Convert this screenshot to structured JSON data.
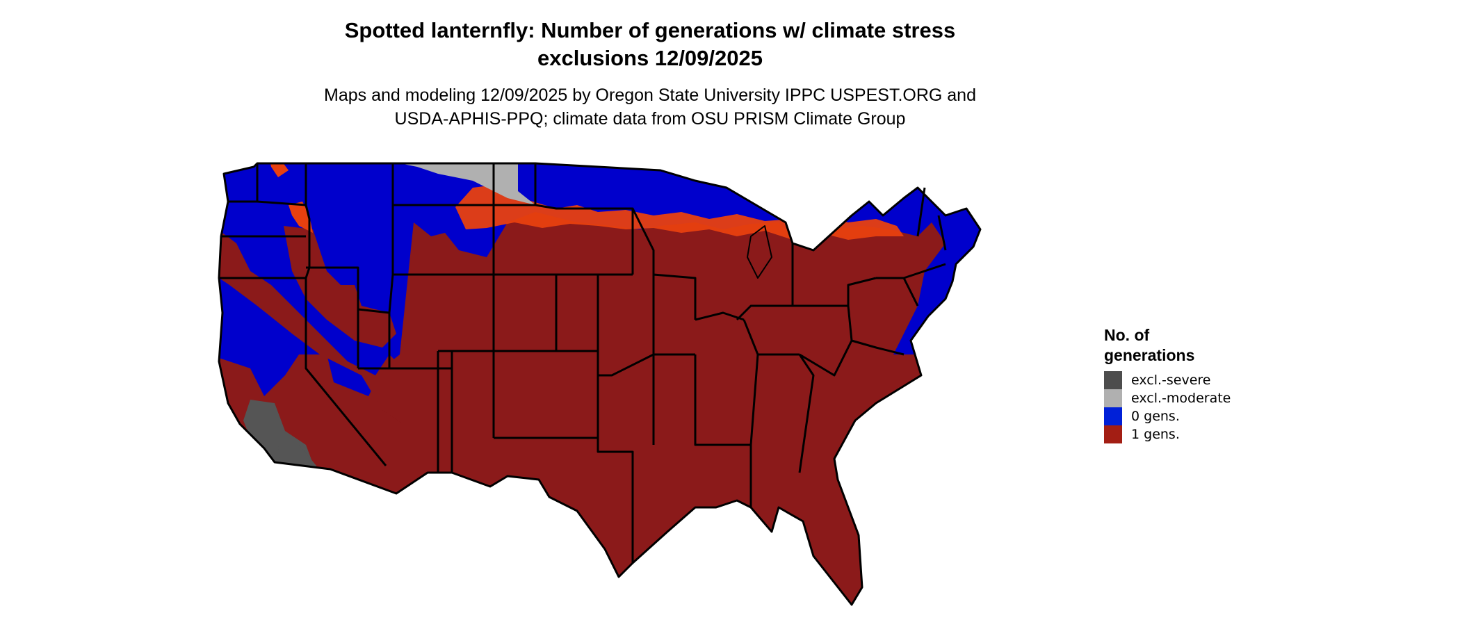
{
  "title_line1": "Spotted lanternfly: Number of generations w/ climate stress",
  "title_line2": "exclusions 12/09/2025",
  "subtitle_line1": "Maps and modeling 12/09/2025 by Oregon State University IPPC USPEST.ORG and",
  "subtitle_line2": "USDA-APHIS-PPQ; climate data from OSU PRISM Climate Group",
  "legend": {
    "title_line1": "No. of",
    "title_line2": "generations",
    "items": [
      {
        "label": "excl.-severe",
        "color": "#4d4d4d"
      },
      {
        "label": "excl.-moderate",
        "color": "#b0b0b0"
      },
      {
        "label": "0 gens.",
        "color": "#0020d8"
      },
      {
        "label": "1 gens.",
        "color": "#a31e14"
      }
    ]
  },
  "map_colors": {
    "zero_gens": "#0000cc",
    "one_gens": "#8b1a1a",
    "one_gens_marginal": "#e8400f",
    "excl_severe": "#555555",
    "excl_moderate": "#b0b0b0",
    "state_border": "#000000"
  }
}
